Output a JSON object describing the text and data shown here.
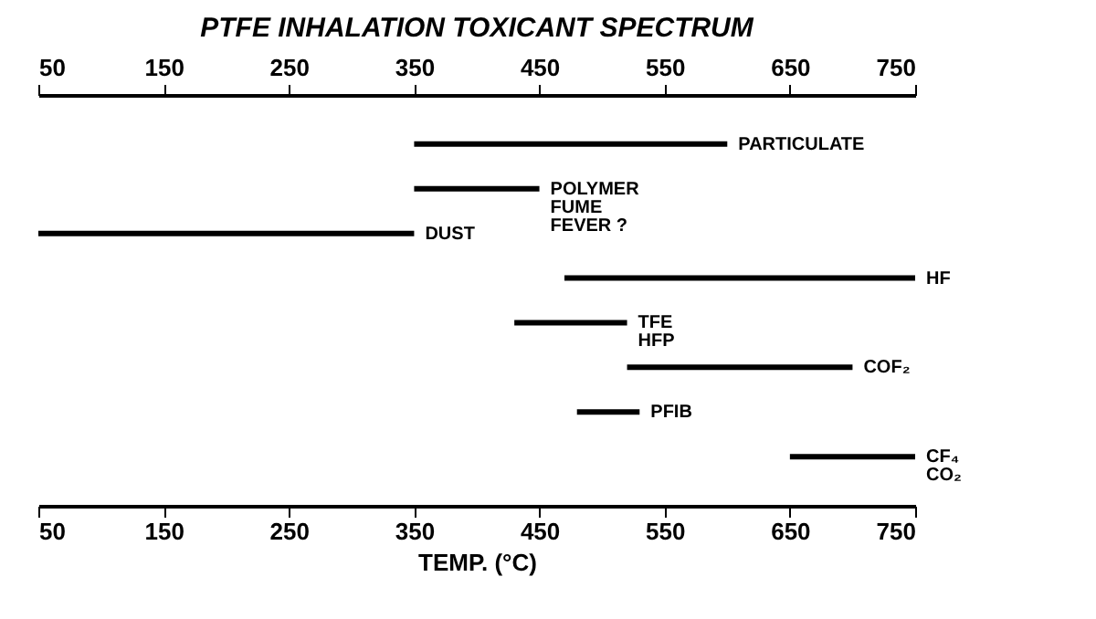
{
  "chart_data": {
    "type": "bar",
    "orientation": "horizontal",
    "title": "PTFE INHALATION TOXICANT SPECTRUM",
    "xlabel": "TEMP. (°C)",
    "categories": [
      "PARTICULATE",
      "POLYMER FUME FEVER ?",
      "DUST",
      "HF",
      "TFE HFP",
      "COF₂",
      "PFIB",
      "CF₄ CO₂"
    ],
    "base": [
      350,
      350,
      50,
      470,
      430,
      520,
      480,
      650
    ],
    "values": [
      250,
      100,
      300,
      280,
      90,
      180,
      50,
      100
    ],
    "color": "#000000",
    "xlim": [
      50,
      750
    ],
    "xticks": [
      50,
      150,
      250,
      350,
      450,
      550,
      650,
      750
    ],
    "x2lim": [
      50,
      750
    ],
    "x2ticks": [
      50,
      150,
      250,
      350,
      450,
      550,
      650,
      750
    ],
    "grid": false
  }
}
